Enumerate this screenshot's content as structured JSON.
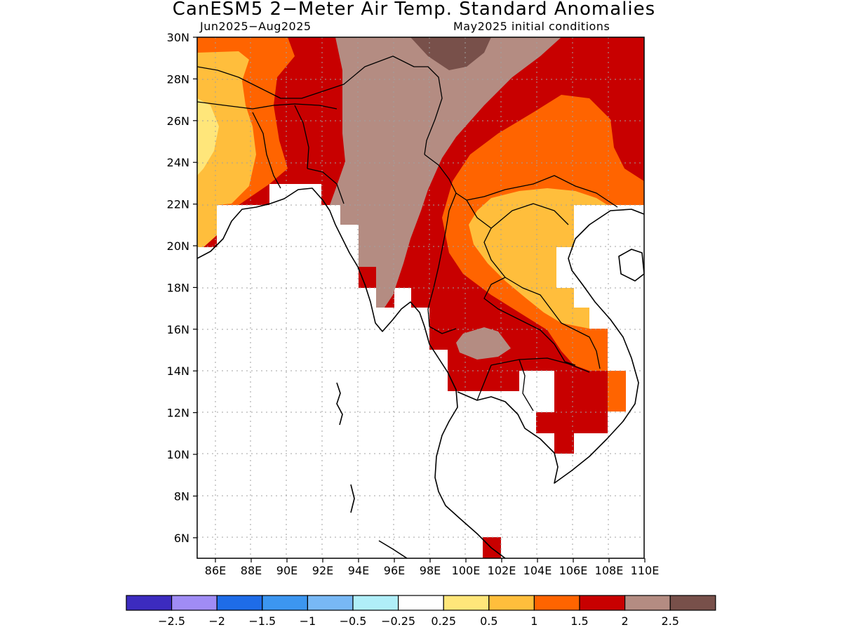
{
  "title": "CanESM5 2−Meter Air Temp. Standard Anomalies",
  "period": "Jun2025−Aug2025",
  "init": "May2025 initial conditions",
  "lat_ticks": [
    "30N",
    "28N",
    "26N",
    "24N",
    "22N",
    "20N",
    "18N",
    "16N",
    "14N",
    "12N",
    "10N",
    "8N",
    "6N"
  ],
  "lon_ticks": [
    "86E",
    "88E",
    "90E",
    "92E",
    "94E",
    "96E",
    "98E",
    "100E",
    "102E",
    "104E",
    "106E",
    "108E",
    "110E"
  ],
  "legend": {
    "colors": [
      "#3c2bbf",
      "#a08cf5",
      "#1e6ce8",
      "#3c96f0",
      "#78b8f5",
      "#b0eef8",
      "#ffffff",
      "#ffe67a",
      "#ffbe3c",
      "#ff6400",
      "#c80000",
      "#b48c82",
      "#78504a"
    ],
    "labels": [
      "−2.5",
      "−2",
      "−1.5",
      "−1",
      "−0.5",
      "−0.25",
      "0.25",
      "0.5",
      "1",
      "1.5",
      "2",
      "2.5"
    ]
  }
}
